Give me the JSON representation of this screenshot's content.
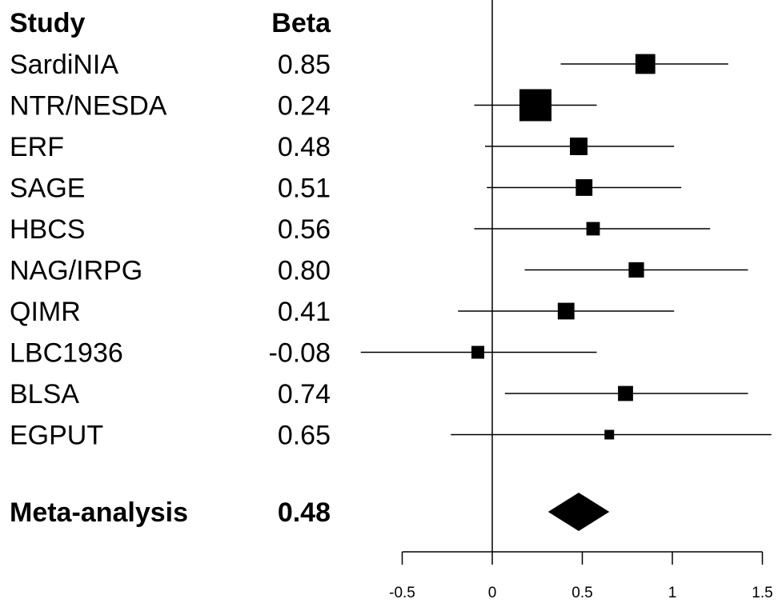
{
  "chart_data": {
    "type": "forest",
    "headers": {
      "study": "Study",
      "beta": "Beta"
    },
    "studies": [
      {
        "name": "SardiNIA",
        "beta_label": "0.85",
        "beta": 0.85,
        "ci": [
          0.38,
          1.31
        ],
        "weight": 0.62
      },
      {
        "name": "NTR/NESDA",
        "beta_label": "0.24",
        "beta": 0.24,
        "ci": [
          -0.1,
          0.58
        ],
        "weight": 1.0
      },
      {
        "name": "ERF",
        "beta_label": "0.48",
        "beta": 0.48,
        "ci": [
          -0.04,
          1.01
        ],
        "weight": 0.55
      },
      {
        "name": "SAGE",
        "beta_label": "0.51",
        "beta": 0.51,
        "ci": [
          -0.03,
          1.05
        ],
        "weight": 0.52
      },
      {
        "name": "HBCS",
        "beta_label": "0.56",
        "beta": 0.56,
        "ci": [
          -0.1,
          1.21
        ],
        "weight": 0.42
      },
      {
        "name": "NAG/IRPG",
        "beta_label": "0.80",
        "beta": 0.8,
        "ci": [
          0.18,
          1.42
        ],
        "weight": 0.48
      },
      {
        "name": "QIMR",
        "beta_label": "0.41",
        "beta": 0.41,
        "ci": [
          -0.19,
          1.01
        ],
        "weight": 0.52
      },
      {
        "name": "LBC1936",
        "beta_label": "-0.08",
        "beta": -0.08,
        "ci": [
          -0.73,
          0.58
        ],
        "weight": 0.4
      },
      {
        "name": "BLSA",
        "beta_label": "0.74",
        "beta": 0.74,
        "ci": [
          0.07,
          1.42
        ],
        "weight": 0.47
      },
      {
        "name": "EGPUT",
        "beta_label": "0.65",
        "beta": 0.65,
        "ci": [
          -0.23,
          1.55
        ],
        "weight": 0.3
      }
    ],
    "meta": {
      "name": "Meta-analysis",
      "beta_label": "0.48",
      "beta": 0.48,
      "ci": [
        0.31,
        0.65
      ]
    },
    "x_ticks": [
      {
        "value": -0.5,
        "label": "-0.5"
      },
      {
        "value": 0,
        "label": "0"
      },
      {
        "value": 0.5,
        "label": "0.5"
      },
      {
        "value": 1,
        "label": "1"
      },
      {
        "value": 1.5,
        "label": "1.5"
      }
    ],
    "xlim": [
      -0.5,
      1.5
    ],
    "reference_line": 0,
    "grid": false,
    "legend": false,
    "colors": {
      "marker": "#000000",
      "line": "#000000",
      "background": "#ffffff"
    }
  }
}
